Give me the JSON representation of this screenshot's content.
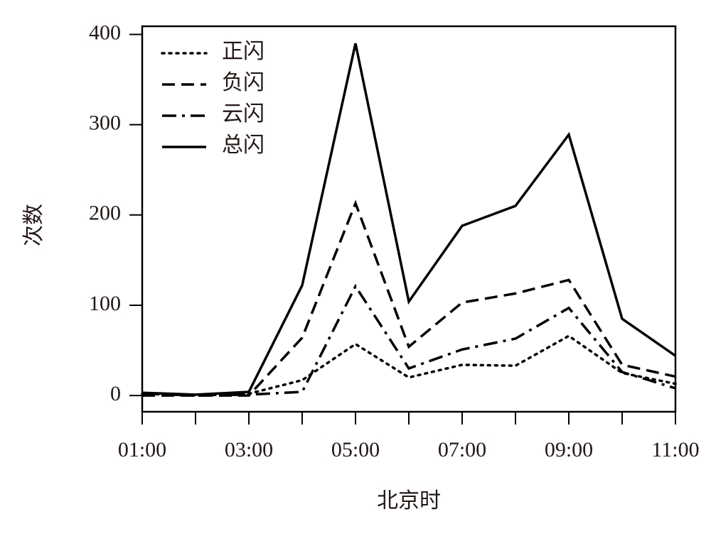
{
  "chart_data": {
    "type": "line",
    "xlabel": "北京时",
    "ylabel": "次数",
    "categories": [
      "01:00",
      null,
      "03:00",
      null,
      "05:00",
      null,
      "07:00",
      null,
      "09:00",
      null,
      "11:00"
    ],
    "series": [
      {
        "name": "正闪",
        "color": "#000000",
        "linestyle": "dotted",
        "values": [
          2,
          0,
          2,
          17,
          57,
          20,
          34,
          33,
          66,
          25,
          13
        ]
      },
      {
        "name": "负闪",
        "color": "#000000",
        "linestyle": "dashed",
        "values": [
          0,
          0,
          0,
          64,
          213,
          54,
          103,
          113,
          128,
          34,
          21
        ]
      },
      {
        "name": "云闪",
        "color": "#000000",
        "linestyle": "dashdot",
        "values": [
          2,
          0,
          1,
          4,
          121,
          30,
          51,
          63,
          97,
          26,
          8
        ]
      },
      {
        "name": "总闪",
        "color": "#000000",
        "linestyle": "solid",
        "values": [
          3,
          1,
          4,
          122,
          390,
          104,
          188,
          210,
          289,
          85,
          44
        ]
      }
    ],
    "ylim": [
      -18,
      409
    ],
    "yticks": [
      0,
      100,
      200,
      300,
      400
    ],
    "legend": "upper left",
    "grid": false
  }
}
